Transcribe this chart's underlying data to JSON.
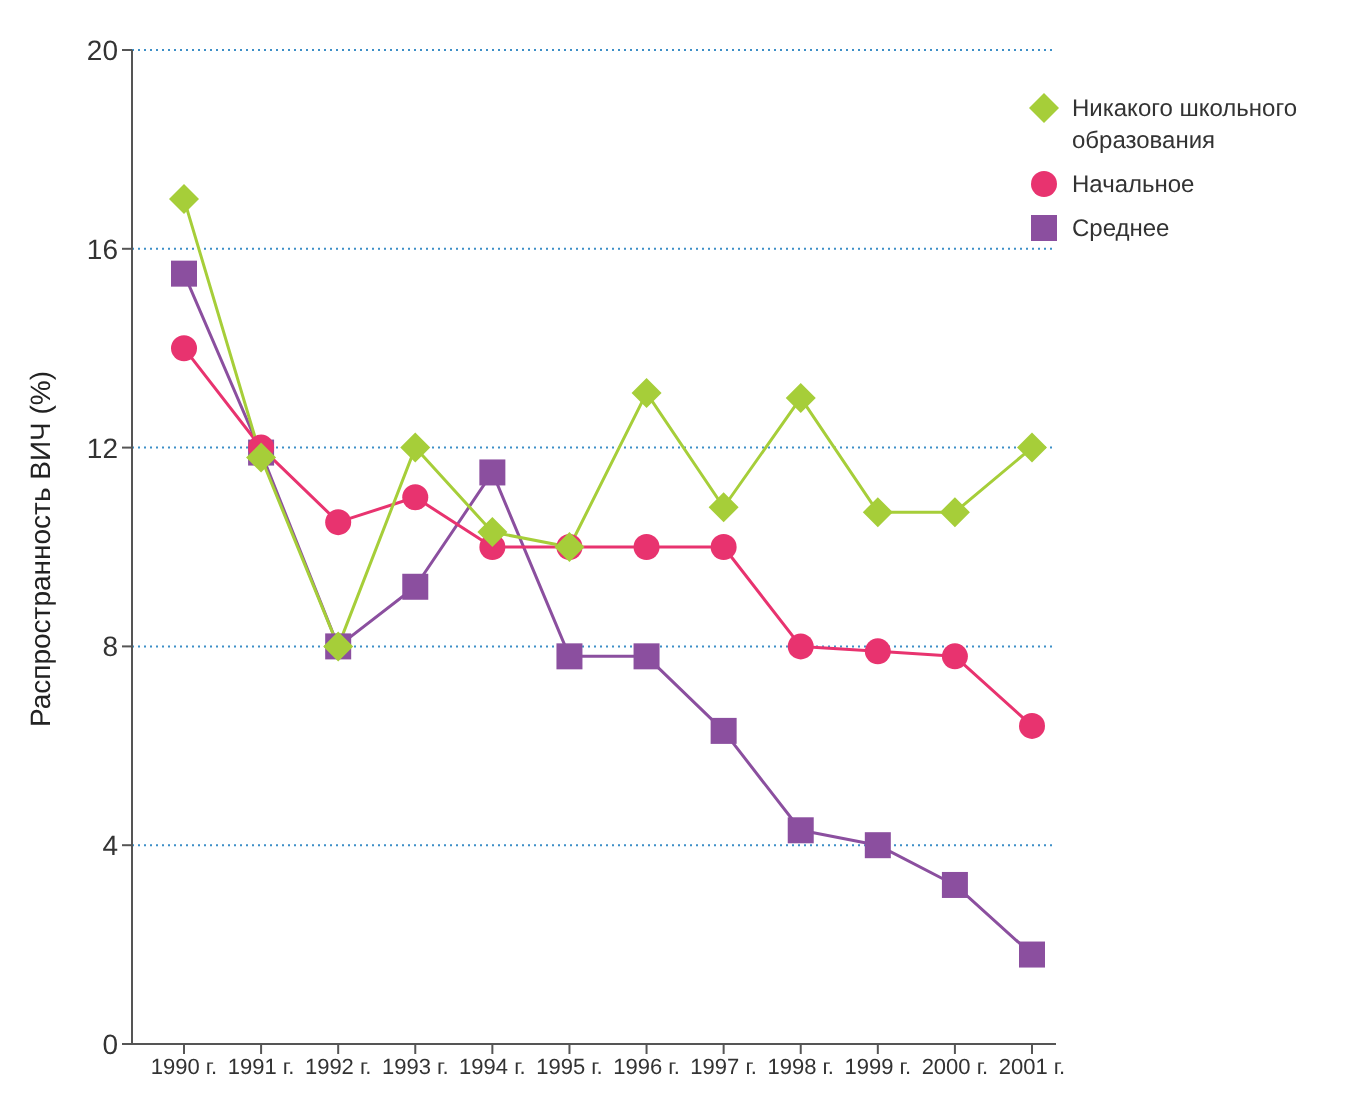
{
  "chart_data": {
    "type": "line",
    "ylabel": "Распространность ВИЧ (%)",
    "categories": [
      "1990 г.",
      "1991 г.",
      "1992 г.",
      "1993 г.",
      "1994 г.",
      "1995 г.",
      "1996 г.",
      "1997 г.",
      "1998 г.",
      "1999 г.",
      "2000 г.",
      "2001 г."
    ],
    "series": [
      {
        "name": "Никакого школьного образования",
        "color": "#a6ce39",
        "marker": "diamond",
        "values": [
          17,
          11.8,
          8,
          12,
          10.3,
          10,
          13.1,
          10.8,
          13,
          10.7,
          10.7,
          12
        ]
      },
      {
        "name": "Начальное",
        "color": "#e8336f",
        "marker": "circle",
        "values": [
          14,
          12,
          10.5,
          11,
          10,
          10,
          10,
          10,
          8,
          7.9,
          7.8,
          6.4
        ]
      },
      {
        "name": "Среднее",
        "color": "#8b4f9f",
        "marker": "square",
        "values": [
          15.5,
          11.9,
          8,
          9.2,
          11.5,
          7.8,
          7.8,
          6.3,
          4.3,
          4,
          3.2,
          1.8
        ]
      }
    ],
    "ylim": [
      0,
      20
    ],
    "yticks": [
      0,
      4,
      8,
      12,
      16,
      20
    ],
    "grid": "y",
    "legend": "top right",
    "line_style": "solid"
  }
}
